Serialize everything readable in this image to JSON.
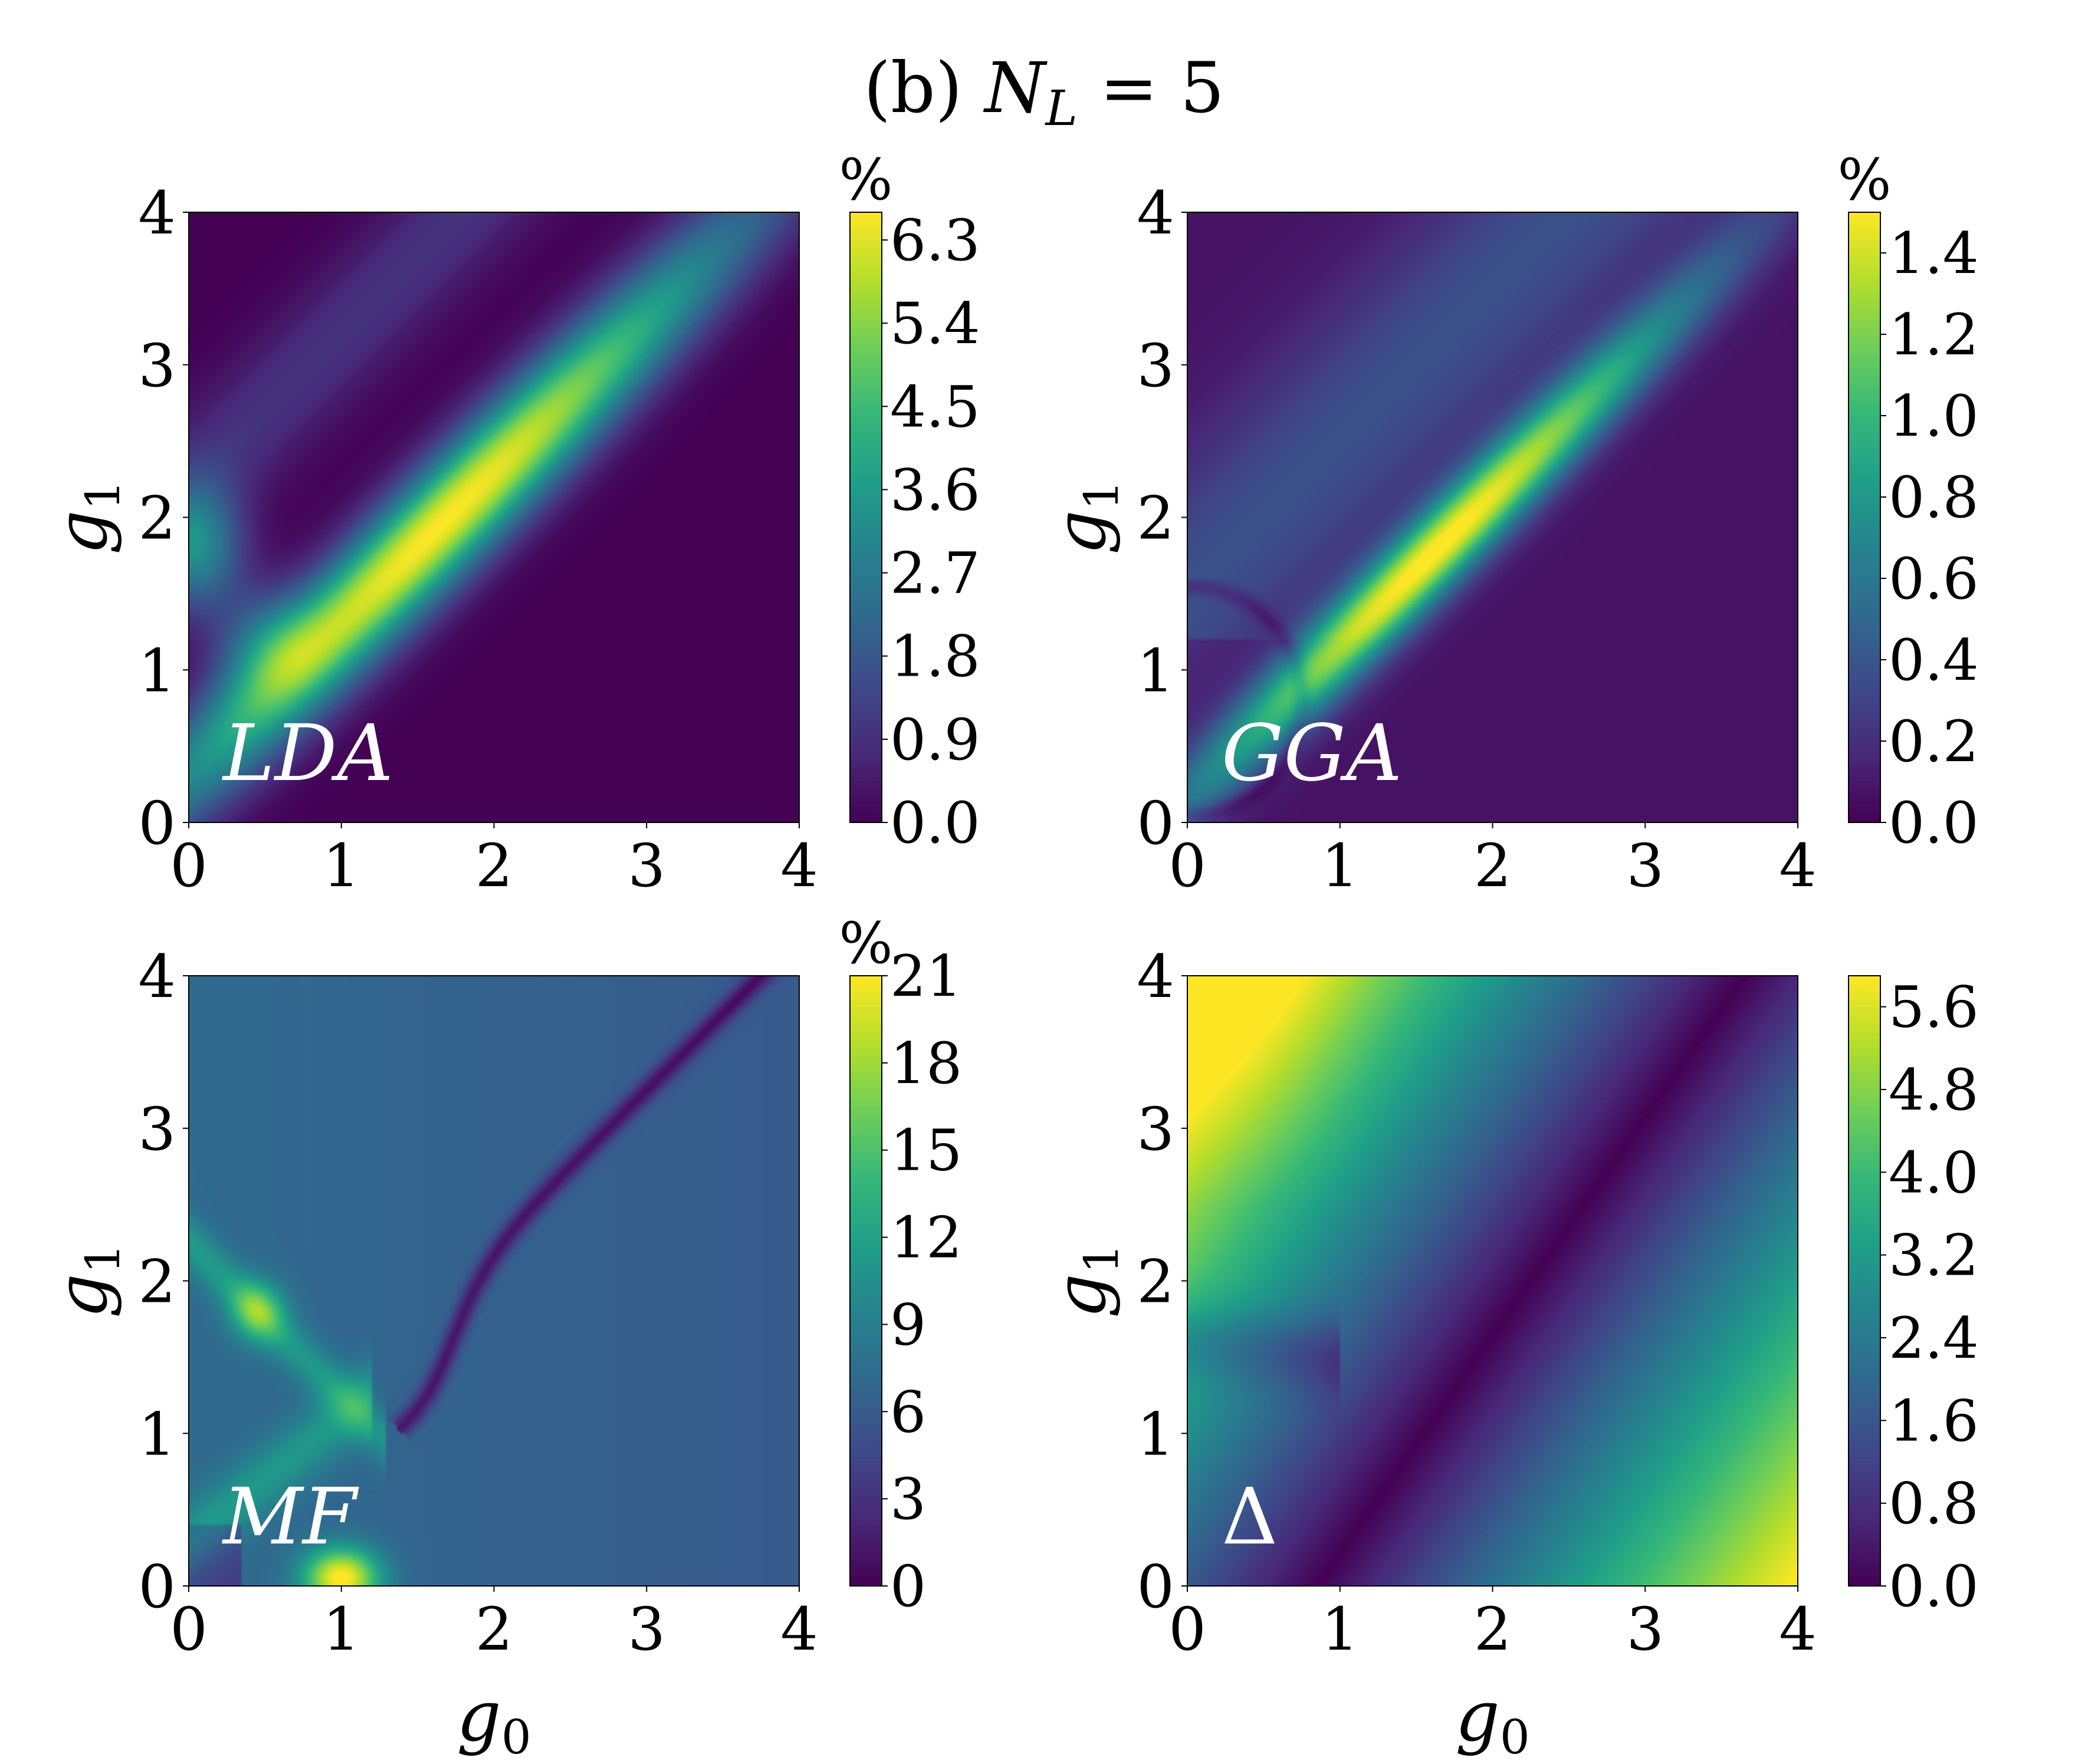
{
  "figure": {
    "title": {
      "prefix": "(b)",
      "var": "N",
      "sub": "L",
      "rest": " = 5"
    }
  },
  "colormap_stops": [
    "#440154",
    "#482878",
    "#3e4a89",
    "#31688e",
    "#26828e",
    "#1f9e89",
    "#35b779",
    "#6ece58",
    "#b5de2b",
    "#fde725"
  ],
  "chart_data": [
    {
      "type": "heatmap",
      "panel": "LDA",
      "label": "LDA",
      "x_label": {
        "base": "g",
        "sub": "0"
      },
      "y_label": {
        "base": "g",
        "sub": "1"
      },
      "xlim": [
        0,
        4
      ],
      "ylim": [
        0,
        4
      ],
      "xticks": [
        "0",
        "1",
        "2",
        "3",
        "4"
      ],
      "yticks": [
        "0",
        "1",
        "2",
        "3",
        "4"
      ],
      "show_xlabel": false,
      "colorbar": {
        "unit": "%",
        "min": 0.0,
        "max": 6.6,
        "ticks": [
          "0.0",
          "0.9",
          "1.8",
          "2.7",
          "3.6",
          "4.5",
          "5.4",
          "6.3"
        ],
        "tick_values": [
          0,
          0.9,
          1.8,
          2.7,
          3.6,
          4.5,
          5.4,
          6.3
        ]
      },
      "peak": {
        "g0": 1.6,
        "g1": 2.0,
        "value": 6.6
      }
    },
    {
      "type": "heatmap",
      "panel": "GGA",
      "label": "GGA",
      "x_label": {
        "base": "g",
        "sub": "0"
      },
      "y_label": {
        "base": "g",
        "sub": "1"
      },
      "xlim": [
        0,
        4
      ],
      "ylim": [
        0,
        4
      ],
      "xticks": [
        "0",
        "1",
        "2",
        "3",
        "4"
      ],
      "yticks": [
        "0",
        "1",
        "2",
        "3",
        "4"
      ],
      "show_xlabel": false,
      "colorbar": {
        "unit": "%",
        "min": 0.0,
        "max": 1.5,
        "ticks": [
          "0.0",
          "0.2",
          "0.4",
          "0.6",
          "0.8",
          "1.0",
          "1.2",
          "1.4"
        ],
        "tick_values": [
          0,
          0.2,
          0.4,
          0.6,
          0.8,
          1.0,
          1.2,
          1.4
        ]
      },
      "peak": {
        "g0": 1.4,
        "g1": 2.0,
        "value": 1.5
      }
    },
    {
      "type": "heatmap",
      "panel": "MF",
      "label": "MF",
      "x_label": {
        "base": "g",
        "sub": "0"
      },
      "y_label": {
        "base": "g",
        "sub": "1"
      },
      "xlim": [
        0,
        4
      ],
      "ylim": [
        0,
        4
      ],
      "xticks": [
        "0",
        "1",
        "2",
        "3",
        "4"
      ],
      "yticks": [
        "0",
        "1",
        "2",
        "3",
        "4"
      ],
      "show_xlabel": true,
      "colorbar": {
        "unit": "%",
        "min": 0,
        "max": 21,
        "ticks": [
          "0",
          "3",
          "6",
          "9",
          "12",
          "15",
          "18",
          "21"
        ],
        "tick_values": [
          0,
          3,
          6,
          9,
          12,
          15,
          18,
          21
        ]
      },
      "peak": {
        "g0": 1.0,
        "g1": 0.05,
        "value": 21
      }
    },
    {
      "type": "heatmap",
      "panel": "Delta",
      "label": "Δ",
      "x_label": {
        "base": "g",
        "sub": "0"
      },
      "y_label": {
        "base": "g",
        "sub": "1"
      },
      "xlim": [
        0,
        4
      ],
      "ylim": [
        0,
        4
      ],
      "xticks": [
        "0",
        "1",
        "2",
        "3",
        "4"
      ],
      "yticks": [
        "0",
        "1",
        "2",
        "3",
        "4"
      ],
      "show_xlabel": true,
      "colorbar": {
        "unit": "",
        "min": 0.0,
        "max": 5.9,
        "ticks": [
          "0.0",
          "0.8",
          "1.6",
          "2.4",
          "3.2",
          "4.0",
          "4.8",
          "5.6"
        ],
        "tick_values": [
          0,
          0.8,
          1.6,
          2.4,
          3.2,
          4.0,
          4.8,
          5.6
        ]
      },
      "peak": {
        "g0": 4.0,
        "g1": 0.0,
        "value": 5.9
      }
    }
  ]
}
